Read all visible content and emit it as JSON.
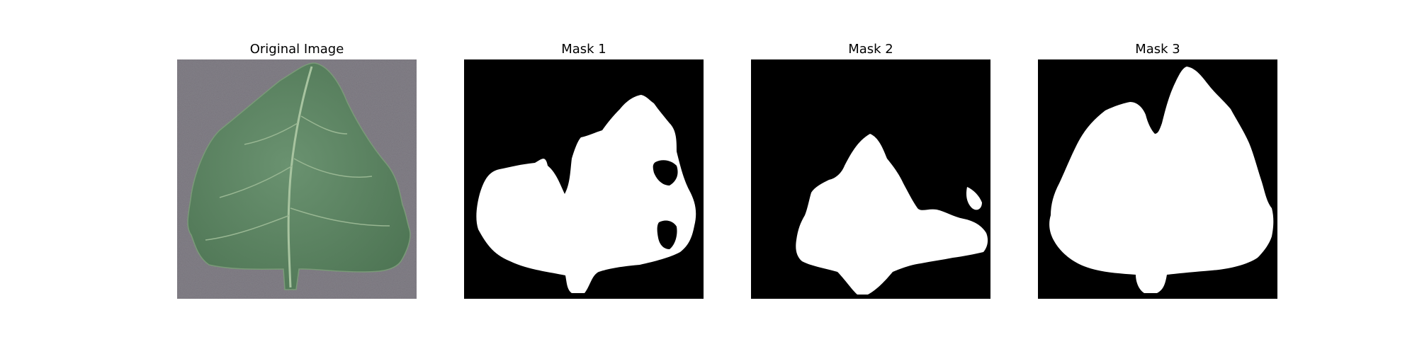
{
  "figure": {
    "panels": [
      {
        "title": "Original Image",
        "content": "photo",
        "background_color": "#838088",
        "leaf_color": "#5d8660",
        "vein_color": "#a8c4a0"
      },
      {
        "title": "Mask 1",
        "content": "mask",
        "background_color": "#000000",
        "foreground_color": "#ffffff"
      },
      {
        "title": "Mask 2",
        "content": "mask",
        "background_color": "#000000",
        "foreground_color": "#ffffff"
      },
      {
        "title": "Mask 3",
        "content": "mask",
        "background_color": "#000000",
        "foreground_color": "#ffffff"
      }
    ]
  }
}
